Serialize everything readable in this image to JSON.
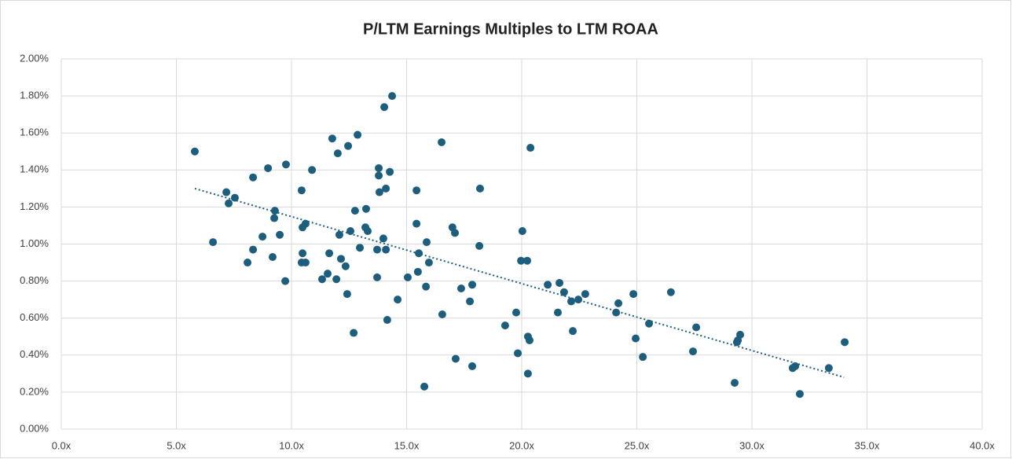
{
  "chart_data": {
    "type": "scatter",
    "title": "P/LTM Earnings Multiples to LTM ROAA",
    "series": [
      {
        "color": "#1b5e7e",
        "x": [
          5.8,
          6.59,
          7.17,
          7.27,
          7.54,
          8.09,
          8.33,
          8.33,
          8.74,
          8.98,
          9.18,
          9.25,
          9.28,
          9.49,
          9.73,
          9.76,
          10.44,
          10.48,
          10.48,
          10.44,
          10.61,
          10.61,
          10.89,
          11.33,
          11.57,
          11.64,
          11.77,
          11.95,
          12.01,
          12.08,
          12.15,
          12.35,
          12.42,
          12.46,
          12.56,
          12.7,
          12.76,
          12.87,
          12.97,
          13.21,
          13.24,
          13.31,
          13.72,
          13.72,
          13.79,
          13.79,
          13.82,
          13.99,
          14.03,
          14.1,
          14.1,
          14.16,
          14.27,
          14.37,
          14.61,
          15.05,
          15.43,
          15.43,
          15.49,
          15.53,
          15.77,
          15.84,
          15.87,
          15.97,
          16.52,
          16.55,
          16.99,
          17.1,
          17.13,
          17.37,
          17.75,
          17.85,
          17.85,
          18.16,
          18.19,
          19.28,
          19.76,
          19.83,
          19.97,
          20.03,
          20.24,
          20.27,
          20.34,
          20.27,
          20.38,
          21.13,
          21.57,
          21.64,
          21.84,
          22.15,
          22.22,
          22.46,
          22.76,
          24.1,
          24.2,
          24.85,
          24.95,
          25.26,
          25.53,
          26.48,
          27.44,
          27.58,
          29.25,
          29.35,
          29.39,
          29.49,
          31.77,
          31.88,
          32.08,
          33.34,
          34.03
        ],
        "values": [
          1.5,
          1.01,
          1.28,
          1.22,
          1.25,
          0.9,
          0.97,
          1.36,
          1.04,
          1.41,
          0.93,
          1.14,
          1.18,
          1.05,
          0.8,
          1.43,
          1.29,
          1.09,
          0.95,
          0.9,
          0.9,
          1.11,
          1.4,
          0.81,
          0.84,
          0.95,
          1.57,
          0.81,
          1.49,
          1.05,
          0.92,
          0.88,
          0.73,
          1.53,
          1.07,
          0.52,
          1.18,
          1.59,
          0.98,
          1.09,
          1.19,
          1.07,
          0.82,
          0.97,
          1.41,
          1.37,
          1.28,
          1.03,
          1.74,
          0.97,
          1.3,
          0.59,
          1.39,
          1.8,
          0.7,
          0.82,
          1.29,
          1.11,
          0.85,
          0.95,
          0.23,
          0.77,
          1.01,
          0.9,
          1.55,
          0.62,
          1.09,
          1.06,
          0.38,
          0.76,
          0.69,
          0.78,
          0.34,
          0.99,
          1.3,
          0.56,
          0.63,
          0.41,
          0.91,
          1.07,
          0.91,
          0.5,
          0.48,
          0.3,
          1.52,
          0.78,
          0.63,
          0.79,
          0.74,
          0.69,
          0.53,
          0.7,
          0.73,
          0.63,
          0.68,
          0.73,
          0.49,
          0.39,
          0.57,
          0.74,
          0.42,
          0.55,
          0.25,
          0.47,
          0.48,
          0.51,
          0.33,
          0.34,
          0.19,
          0.33,
          0.47
        ]
      }
    ],
    "trendline": {
      "color": "#1b5e7e",
      "x": [
        5.8,
        34.0
      ],
      "values": [
        1.3,
        0.28
      ]
    },
    "xlim": [
      0,
      40
    ],
    "xticks": [
      {
        "value": 0,
        "label": "0.0x"
      },
      {
        "value": 5,
        "label": "5.0x"
      },
      {
        "value": 10,
        "label": "10.0x"
      },
      {
        "value": 15,
        "label": "15.0x"
      },
      {
        "value": 20,
        "label": "20.0x"
      },
      {
        "value": 25,
        "label": "25.0x"
      },
      {
        "value": 30,
        "label": "30.0x"
      },
      {
        "value": 35,
        "label": "35.0x"
      },
      {
        "value": 40,
        "label": "40.0x"
      }
    ],
    "ylim": [
      0,
      2
    ],
    "yticks": [
      {
        "value": 0,
        "label": "0.00%"
      },
      {
        "value": 0.2,
        "label": "0.20%"
      },
      {
        "value": 0.4,
        "label": "0.40%"
      },
      {
        "value": 0.6,
        "label": "0.60%"
      },
      {
        "value": 0.8,
        "label": "0.80%"
      },
      {
        "value": 1.0,
        "label": "1.00%"
      },
      {
        "value": 1.2,
        "label": "1.20%"
      },
      {
        "value": 1.4,
        "label": "1.40%"
      },
      {
        "value": 1.6,
        "label": "1.60%"
      },
      {
        "value": 1.8,
        "label": "1.80%"
      },
      {
        "value": 2.0,
        "label": "2.00%"
      }
    ],
    "grid": true
  }
}
